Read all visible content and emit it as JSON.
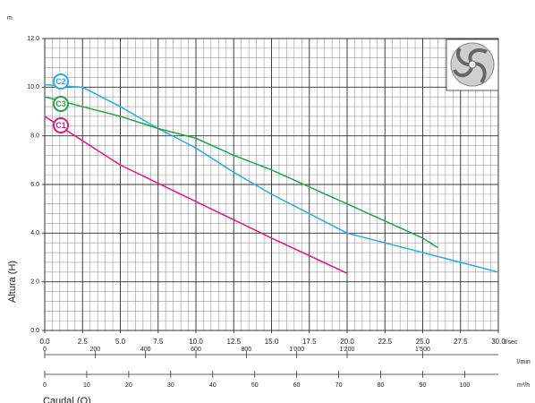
{
  "chart_data": {
    "type": "line",
    "y_unit": "m",
    "ylabel": "Altura (H)",
    "xlabel": "Caudal (Q)",
    "x_unit": "l/sec",
    "xlim": [
      0,
      30
    ],
    "ylim": [
      0,
      12
    ],
    "xticks": [
      {
        "value": 0,
        "label": "0.0"
      },
      2.5,
      {
        "value": 5,
        "label": "5.0"
      },
      7.5,
      {
        "value": 10,
        "label": "10.0"
      },
      12.5,
      {
        "value": 15,
        "label": "15.0"
      },
      17.5,
      {
        "value": 20,
        "label": "20.0"
      },
      22.5,
      {
        "value": 25,
        "label": "25.0"
      },
      27.5,
      {
        "value": 30,
        "label": "30.0"
      }
    ],
    "yticks": [
      {
        "value": 0,
        "label": "0.0"
      },
      {
        "value": 2,
        "label": "2.0"
      },
      {
        "value": 4,
        "label": "4.0"
      },
      {
        "value": 6,
        "label": "6.0"
      },
      {
        "value": 8,
        "label": "8.0"
      },
      {
        "value": 10,
        "label": "10.0"
      },
      {
        "value": 12,
        "label": "12.0"
      }
    ],
    "minor_grid": {
      "x_step": 0.5,
      "y_step": 0.4
    },
    "secondary_axes": [
      {
        "unit": "l/min",
        "lim": [
          0,
          1800
        ],
        "ticks": [
          0,
          200,
          400,
          600,
          800,
          {
            "value": 1000,
            "label": "1'000"
          },
          {
            "value": 1200,
            "label": "1'200"
          },
          {
            "value": 1500,
            "label": "1'500"
          }
        ]
      },
      {
        "unit": "m³/h",
        "lim": [
          0,
          108
        ],
        "ticks": [
          0,
          10,
          20,
          30,
          40,
          50,
          60,
          70,
          80,
          90,
          100
        ]
      }
    ],
    "series": [
      {
        "name": "C1",
        "color": "#e0197d",
        "x": [
          0,
          5,
          10,
          15,
          20
        ],
        "values": [
          8.8,
          6.8,
          5.3,
          3.8,
          2.35
        ]
      },
      {
        "name": "C2",
        "color": "#29abe2",
        "x": [
          0,
          2.5,
          5,
          7.5,
          10,
          12.5,
          15,
          17.5,
          20,
          25,
          30
        ],
        "values": [
          10.1,
          10.0,
          9.2,
          8.3,
          7.5,
          6.5,
          5.6,
          4.8,
          4.0,
          3.2,
          2.4
        ]
      },
      {
        "name": "C3",
        "color": "#22a34a",
        "x": [
          0,
          5,
          7.5,
          10,
          12.5,
          15,
          20,
          25,
          26
        ],
        "values": [
          9.6,
          8.8,
          8.3,
          7.9,
          7.2,
          6.6,
          5.2,
          3.8,
          3.4
        ]
      }
    ]
  }
}
